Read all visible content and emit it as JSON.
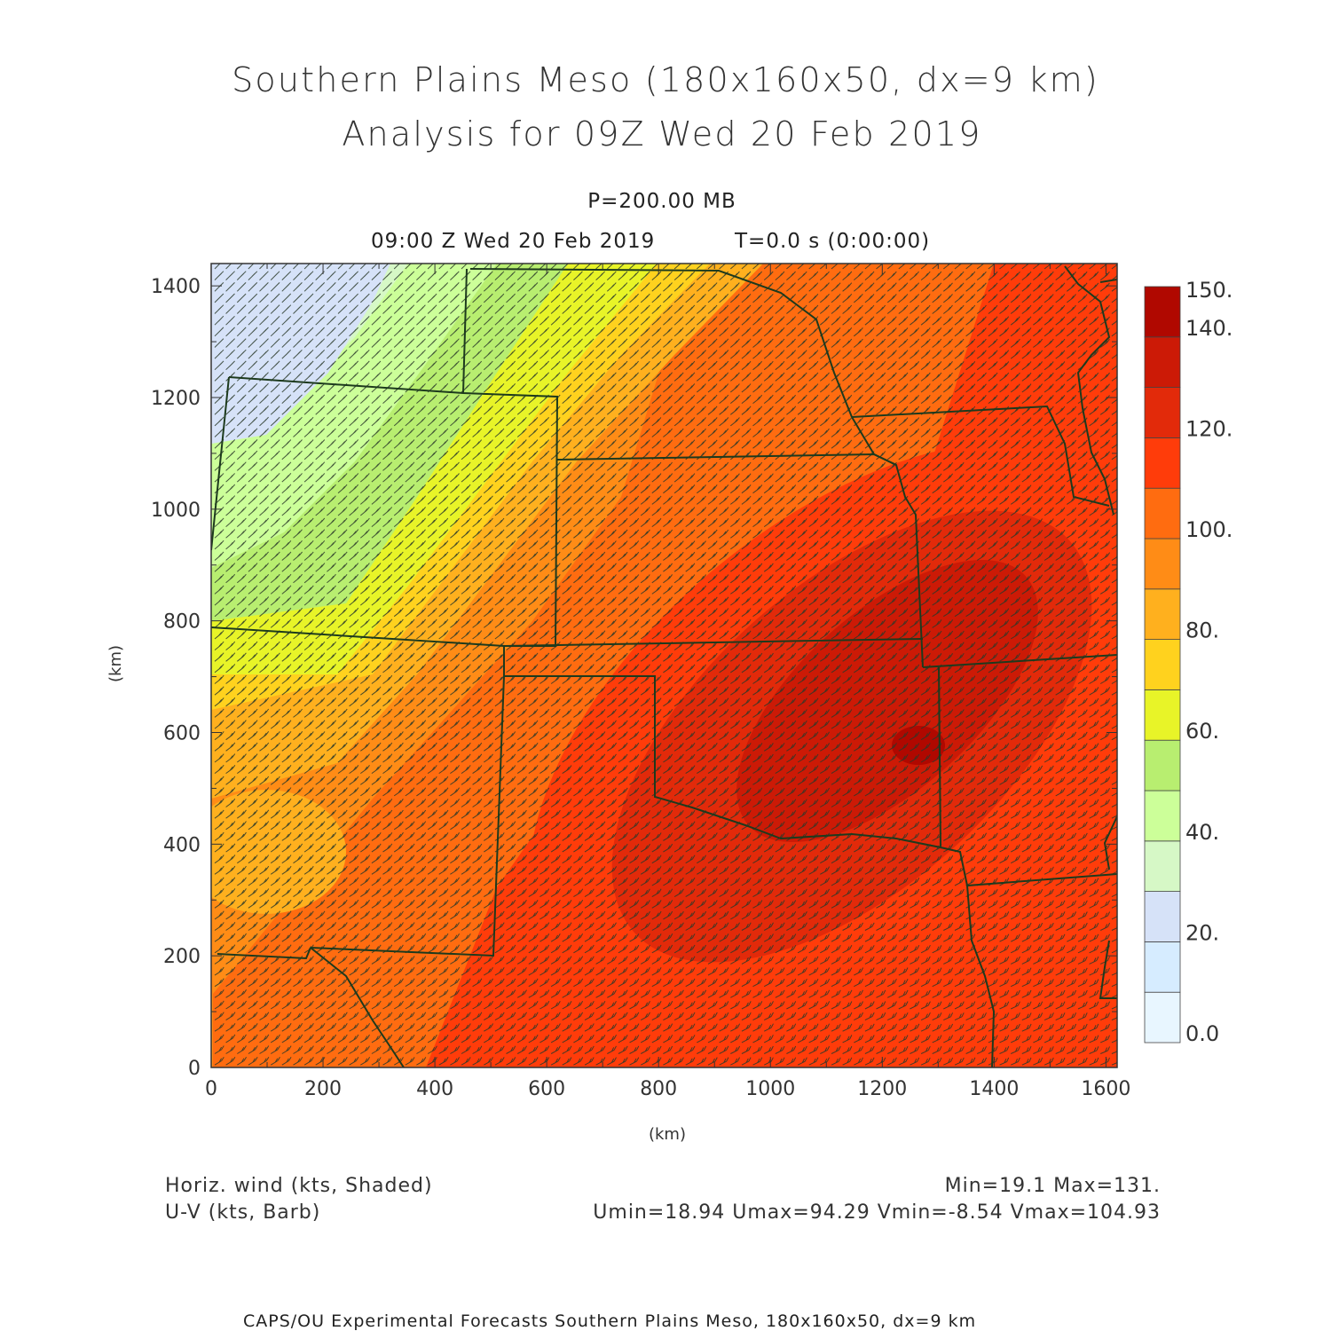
{
  "header": {
    "title_line1": "Southern Plains Meso (180x160x50, dx=9 km)",
    "title_line2": "Analysis for 09Z Wed 20 Feb 2019",
    "level": "P=200.00 MB",
    "valid_time": "09:00 Z Wed 20 Feb 2019",
    "forecast_time": "T=0.0 s (0:00:00)"
  },
  "axes": {
    "x_label": "(km)",
    "y_label": "(km)",
    "x_ticks": [
      0,
      200,
      400,
      600,
      800,
      1000,
      1200,
      1400,
      1600
    ],
    "y_ticks": [
      0,
      200,
      400,
      600,
      800,
      1000,
      1200,
      1400
    ],
    "x_range": [
      0,
      1620
    ],
    "y_range": [
      0,
      1440
    ]
  },
  "colorbar": {
    "labels": [
      "0.0",
      "20.",
      "40.",
      "60.",
      "80.",
      "100.",
      "120.",
      "140.",
      "150."
    ],
    "levels": [
      0,
      10,
      20,
      30,
      40,
      50,
      60,
      70,
      80,
      90,
      100,
      110,
      120,
      130,
      140,
      150
    ],
    "colors": [
      "#e8f6ff",
      "#d6ecff",
      "#d6e2f8",
      "#d6f8c6",
      "#ccff99",
      "#b8ee70",
      "#e8f428",
      "#ffd21e",
      "#ffb01e",
      "#ff8c16",
      "#ff6c10",
      "#ff3c0a",
      "#e22a0a",
      "#cc1a06",
      "#b00800"
    ]
  },
  "fields": {
    "shaded_label": "Horiz. wind (kts, Shaded)",
    "barb_label": "U-V (kts, Barb)",
    "minmax": "Min=19.1 Max=131.",
    "uv_stats": "Umin=18.94 Umax=94.29 Vmin=-8.54 Vmax=104.93"
  },
  "footer": {
    "credit": "CAPS/OU Experimental Forecasts  Southern Plains Meso, 180x160x50, dx=9 km"
  }
}
